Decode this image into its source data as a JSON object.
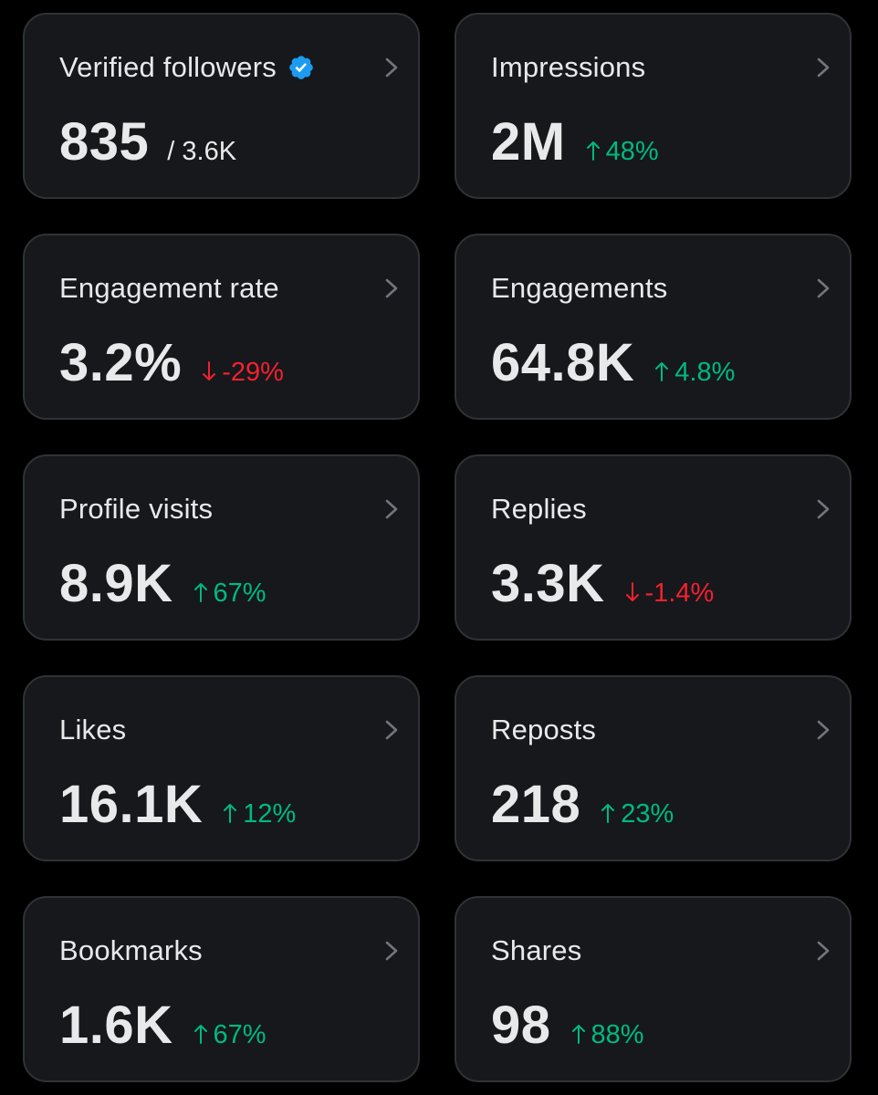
{
  "colors": {
    "background": "#000000",
    "card": "#16181c",
    "border": "#2f3336",
    "text": "#e7e9ea",
    "up": "#00ba7c",
    "down": "#f4212e",
    "verified": "#1d9bf0"
  },
  "metrics": [
    {
      "label": "Verified followers",
      "value": "835",
      "sub": "/ 3.6K",
      "verified": true
    },
    {
      "label": "Impressions",
      "value": "2M",
      "delta": "48%",
      "trend": "up"
    },
    {
      "label": "Engagement rate",
      "value": "3.2%",
      "delta": "-29%",
      "trend": "down"
    },
    {
      "label": "Engagements",
      "value": "64.8K",
      "delta": "4.8%",
      "trend": "up"
    },
    {
      "label": "Profile visits",
      "value": "8.9K",
      "delta": "67%",
      "trend": "up"
    },
    {
      "label": "Replies",
      "value": "3.3K",
      "delta": "-1.4%",
      "trend": "down"
    },
    {
      "label": "Likes",
      "value": "16.1K",
      "delta": "12%",
      "trend": "up"
    },
    {
      "label": "Reposts",
      "value": "218",
      "delta": "23%",
      "trend": "up"
    },
    {
      "label": "Bookmarks",
      "value": "1.6K",
      "delta": "67%",
      "trend": "up"
    },
    {
      "label": "Shares",
      "value": "98",
      "delta": "88%",
      "trend": "up"
    }
  ]
}
